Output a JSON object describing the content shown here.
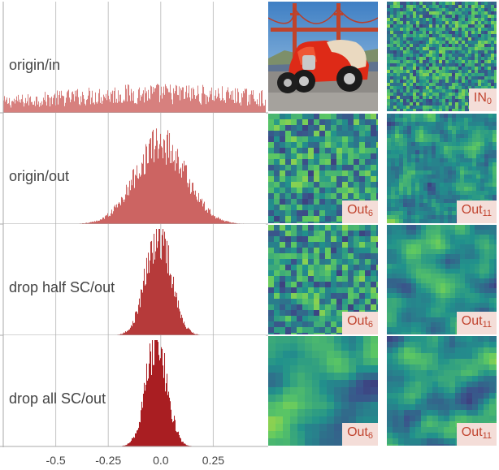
{
  "chart_data": {
    "type": "histogram",
    "x_ticks": [
      -0.5,
      -0.25,
      0.0,
      0.25
    ],
    "xlim": [
      -0.75,
      0.5
    ],
    "panels": [
      {
        "label": "origin/in",
        "distribution": "near-uniform",
        "center": 0.0,
        "spread": 0.75,
        "peak_rel": 0.28,
        "color": "#d7807e"
      },
      {
        "label": "origin/out",
        "distribution": "bell",
        "center": 0.0,
        "spread": 0.12,
        "peak_rel": 0.78,
        "color": "#cc6462"
      },
      {
        "label": "drop half SC/out",
        "distribution": "bell",
        "center": -0.01,
        "spread": 0.06,
        "peak_rel": 0.99,
        "color": "#b63a3a"
      },
      {
        "label": "drop all SC/out",
        "distribution": "bell",
        "center": -0.02,
        "spread": 0.05,
        "peak_rel": 1.0,
        "color": "#a91e22"
      }
    ]
  },
  "feature_maps": {
    "photo": {
      "name": "photo-red-hotrod-golden-gate"
    },
    "tiles": [
      {
        "name": "feature-map-in0",
        "row": 0,
        "col": 1,
        "label": "IN",
        "sub": "0",
        "seed": 7,
        "scale": 4,
        "smooth": 0
      },
      {
        "name": "feature-map-out6-origin",
        "row": 1,
        "col": 0,
        "label": "Out",
        "sub": "6",
        "seed": 11,
        "scale": 7,
        "smooth": 0
      },
      {
        "name": "feature-map-out11-origin",
        "row": 1,
        "col": 1,
        "label": "Out",
        "sub": "11",
        "seed": 13,
        "scale": 5,
        "smooth": 1
      },
      {
        "name": "feature-map-out6-drop-half",
        "row": 2,
        "col": 0,
        "label": "Out",
        "sub": "6",
        "seed": 17,
        "scale": 7,
        "smooth": 0
      },
      {
        "name": "feature-map-out11-drop-half",
        "row": 2,
        "col": 1,
        "label": "Out",
        "sub": "11",
        "seed": 19,
        "scale": 6,
        "smooth": 2
      },
      {
        "name": "feature-map-out6-drop-all",
        "row": 3,
        "col": 0,
        "label": "Out",
        "sub": "6",
        "seed": 23,
        "scale": 9,
        "smooth": 2
      },
      {
        "name": "feature-map-out11-drop-all",
        "row": 3,
        "col": 1,
        "label": "Out",
        "sub": "11",
        "seed": 29,
        "scale": 7,
        "smooth": 2
      }
    ]
  }
}
